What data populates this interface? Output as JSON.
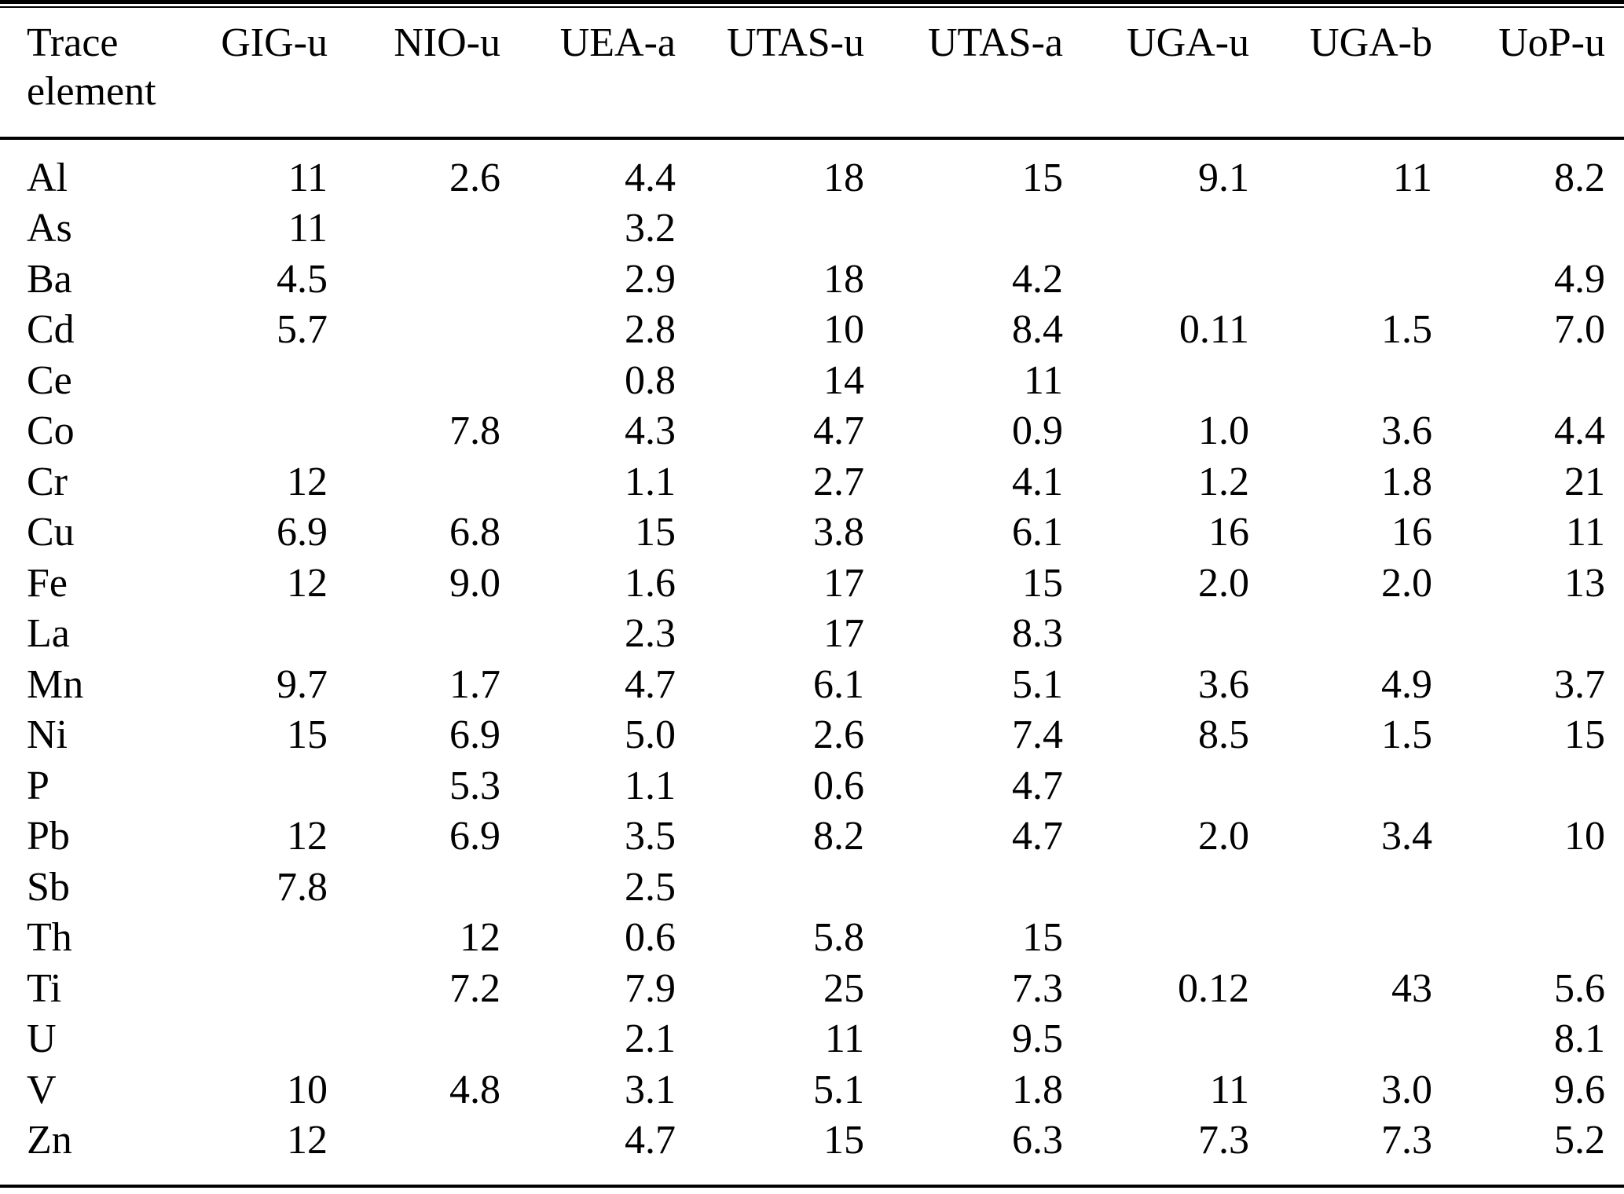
{
  "title": "Trace element table",
  "colors": {
    "text": "#000000",
    "background": "#ffffff",
    "rule": "#000000"
  },
  "table": {
    "corner_header": {
      "line1": "Trace",
      "line2": "element"
    },
    "columns": [
      "GIG-u",
      "NIO-u",
      "UEA-a",
      "UTAS-u",
      "UTAS-a",
      "UGA-u",
      "UGA-b",
      "UoP-u"
    ],
    "rows": [
      {
        "element": "Al",
        "values": [
          "11",
          "2.6",
          "4.4",
          "18",
          "15",
          "9.1",
          "11",
          "8.2"
        ]
      },
      {
        "element": "As",
        "values": [
          "11",
          "",
          "3.2",
          "",
          "",
          "",
          "",
          ""
        ]
      },
      {
        "element": "Ba",
        "values": [
          "4.5",
          "",
          "2.9",
          "18",
          "4.2",
          "",
          "",
          "4.9"
        ]
      },
      {
        "element": "Cd",
        "values": [
          "5.7",
          "",
          "2.8",
          "10",
          "8.4",
          "0.11",
          "1.5",
          "7.0"
        ]
      },
      {
        "element": "Ce",
        "values": [
          "",
          "",
          "0.8",
          "14",
          "11",
          "",
          "",
          ""
        ]
      },
      {
        "element": "Co",
        "values": [
          "",
          "7.8",
          "4.3",
          "4.7",
          "0.9",
          "1.0",
          "3.6",
          "4.4"
        ]
      },
      {
        "element": "Cr",
        "values": [
          "12",
          "",
          "1.1",
          "2.7",
          "4.1",
          "1.2",
          "1.8",
          "21"
        ]
      },
      {
        "element": "Cu",
        "values": [
          "6.9",
          "6.8",
          "15",
          "3.8",
          "6.1",
          "16",
          "16",
          "11"
        ]
      },
      {
        "element": "Fe",
        "values": [
          "12",
          "9.0",
          "1.6",
          "17",
          "15",
          "2.0",
          "2.0",
          "13"
        ]
      },
      {
        "element": "La",
        "values": [
          "",
          "",
          "2.3",
          "17",
          "8.3",
          "",
          "",
          ""
        ]
      },
      {
        "element": "Mn",
        "values": [
          "9.7",
          "1.7",
          "4.7",
          "6.1",
          "5.1",
          "3.6",
          "4.9",
          "3.7"
        ]
      },
      {
        "element": "Ni",
        "values": [
          "15",
          "6.9",
          "5.0",
          "2.6",
          "7.4",
          "8.5",
          "1.5",
          "15"
        ]
      },
      {
        "element": "P",
        "values": [
          "",
          "5.3",
          "1.1",
          "0.6",
          "4.7",
          "",
          "",
          ""
        ]
      },
      {
        "element": "Pb",
        "values": [
          "12",
          "6.9",
          "3.5",
          "8.2",
          "4.7",
          "2.0",
          "3.4",
          "10"
        ]
      },
      {
        "element": "Sb",
        "values": [
          "7.8",
          "",
          "2.5",
          "",
          "",
          "",
          "",
          ""
        ]
      },
      {
        "element": "Th",
        "values": [
          "",
          "12",
          "0.6",
          "5.8",
          "15",
          "",
          "",
          ""
        ]
      },
      {
        "element": "Ti",
        "values": [
          "",
          "7.2",
          "7.9",
          "25",
          "7.3",
          "0.12",
          "43",
          "5.6"
        ]
      },
      {
        "element": "U",
        "values": [
          "",
          "",
          "2.1",
          "11",
          "9.5",
          "",
          "",
          "8.1"
        ]
      },
      {
        "element": "V",
        "values": [
          "10",
          "4.8",
          "3.1",
          "5.1",
          "1.8",
          "11",
          "3.0",
          "9.6"
        ]
      },
      {
        "element": "Zn",
        "values": [
          "12",
          "",
          "4.7",
          "15",
          "6.3",
          "7.3",
          "7.3",
          "5.2"
        ]
      }
    ]
  },
  "chart_data": {
    "type": "table",
    "title": "Trace element values by laboratory sample",
    "row_header": "Trace element",
    "columns": [
      "GIG-u",
      "NIO-u",
      "UEA-a",
      "UTAS-u",
      "UTAS-a",
      "UGA-u",
      "UGA-b",
      "UoP-u"
    ],
    "rows": [
      [
        "Al",
        "11",
        "2.6",
        "4.4",
        "18",
        "15",
        "9.1",
        "11",
        "8.2"
      ],
      [
        "As",
        "11",
        "",
        "3.2",
        "",
        "",
        "",
        "",
        ""
      ],
      [
        "Ba",
        "4.5",
        "",
        "2.9",
        "18",
        "4.2",
        "",
        "",
        "4.9"
      ],
      [
        "Cd",
        "5.7",
        "",
        "2.8",
        "10",
        "8.4",
        "0.11",
        "1.5",
        "7.0"
      ],
      [
        "Ce",
        "",
        "",
        "0.8",
        "14",
        "11",
        "",
        "",
        ""
      ],
      [
        "Co",
        "",
        "7.8",
        "4.3",
        "4.7",
        "0.9",
        "1.0",
        "3.6",
        "4.4"
      ],
      [
        "Cr",
        "12",
        "",
        "1.1",
        "2.7",
        "4.1",
        "1.2",
        "1.8",
        "21"
      ],
      [
        "Cu",
        "6.9",
        "6.8",
        "15",
        "3.8",
        "6.1",
        "16",
        "16",
        "11"
      ],
      [
        "Fe",
        "12",
        "9.0",
        "1.6",
        "17",
        "15",
        "2.0",
        "2.0",
        "13"
      ],
      [
        "La",
        "",
        "",
        "2.3",
        "17",
        "8.3",
        "",
        "",
        ""
      ],
      [
        "Mn",
        "9.7",
        "1.7",
        "4.7",
        "6.1",
        "5.1",
        "3.6",
        "4.9",
        "3.7"
      ],
      [
        "Ni",
        "15",
        "6.9",
        "5.0",
        "2.6",
        "7.4",
        "8.5",
        "1.5",
        "15"
      ],
      [
        "P",
        "",
        "5.3",
        "1.1",
        "0.6",
        "4.7",
        "",
        "",
        ""
      ],
      [
        "Pb",
        "12",
        "6.9",
        "3.5",
        "8.2",
        "4.7",
        "2.0",
        "3.4",
        "10"
      ],
      [
        "Sb",
        "7.8",
        "",
        "2.5",
        "",
        "",
        "",
        "",
        ""
      ],
      [
        "Th",
        "",
        "12",
        "0.6",
        "5.8",
        "15",
        "",
        "",
        ""
      ],
      [
        "Ti",
        "",
        "7.2",
        "7.9",
        "25",
        "7.3",
        "0.12",
        "43",
        "5.6"
      ],
      [
        "U",
        "",
        "",
        "2.1",
        "11",
        "9.5",
        "",
        "",
        "8.1"
      ],
      [
        "V",
        "10",
        "4.8",
        "3.1",
        "5.1",
        "1.8",
        "11",
        "3.0",
        "9.6"
      ],
      [
        "Zn",
        "12",
        "",
        "4.7",
        "15",
        "6.3",
        "7.3",
        "7.3",
        "5.2"
      ]
    ]
  }
}
